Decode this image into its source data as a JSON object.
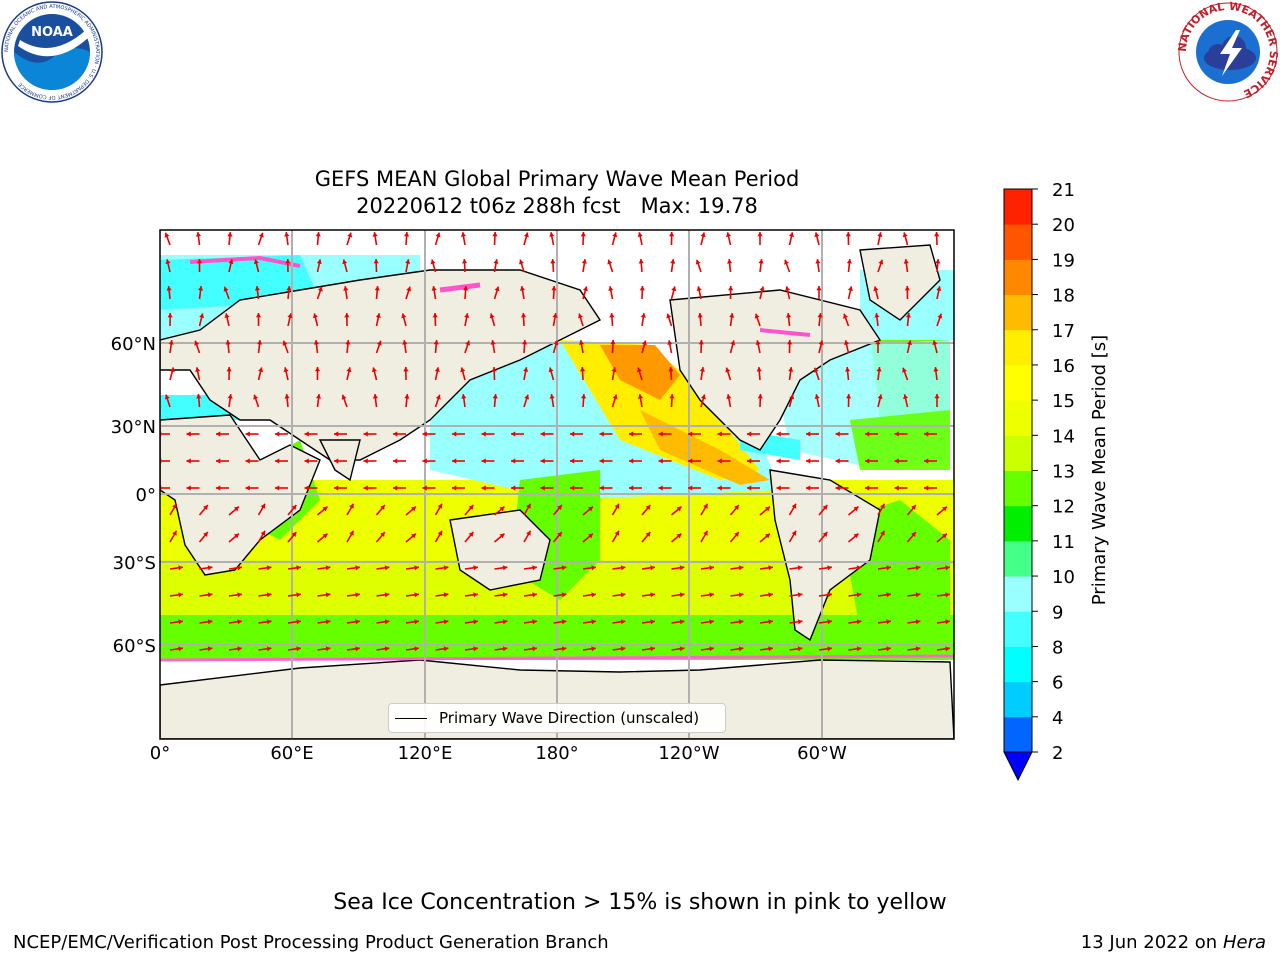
{
  "title_line1": "GEFS MEAN Global Primary Wave Mean Period",
  "title_line2": "20220612 t06z 288h fcst   Max: 19.78",
  "colorbar": {
    "label": "Primary Wave Mean Period [s]",
    "ticks": [
      "2",
      "4",
      "6",
      "8",
      "9",
      "10",
      "11",
      "12",
      "13",
      "14",
      "15",
      "16",
      "17",
      "18",
      "19",
      "20",
      "21"
    ],
    "colors": [
      "#0066ff",
      "#00ccff",
      "#00ffff",
      "#44ffff",
      "#99ffff",
      "#44ff88",
      "#00ee00",
      "#66ff00",
      "#ccff00",
      "#eeff00",
      "#ffff00",
      "#ffee00",
      "#ffbb00",
      "#ff8800",
      "#ff5500",
      "#ff2200",
      "#ff0000"
    ],
    "under_color": "#0000ff"
  },
  "axes": {
    "lat_labels": [
      "60°N",
      "30°N",
      "0°",
      "30°S",
      "60°S"
    ],
    "lon_labels": [
      "0°",
      "60°E",
      "120°E",
      "180°",
      "120°W",
      "60°W"
    ]
  },
  "legend_label": "Primary Wave Direction (unscaled)",
  "footer_note": "Sea Ice Concentration > 15% is shown in pink to yellow",
  "footer_left": "NCEP/EMC/Verification Post Processing Product Generation Branch",
  "footer_right_date": "13 Jun 2022 on",
  "footer_right_host": "Hera",
  "logos": {
    "noaa": {
      "text": "NOAA",
      "ring": "NATIONAL OCEANIC AND ATMOSPHERIC ADMINISTRATION · U.S. DEPARTMENT OF COMMERCE"
    },
    "nws": {
      "ring": "NATIONAL WEATHER SERVICE"
    }
  }
}
